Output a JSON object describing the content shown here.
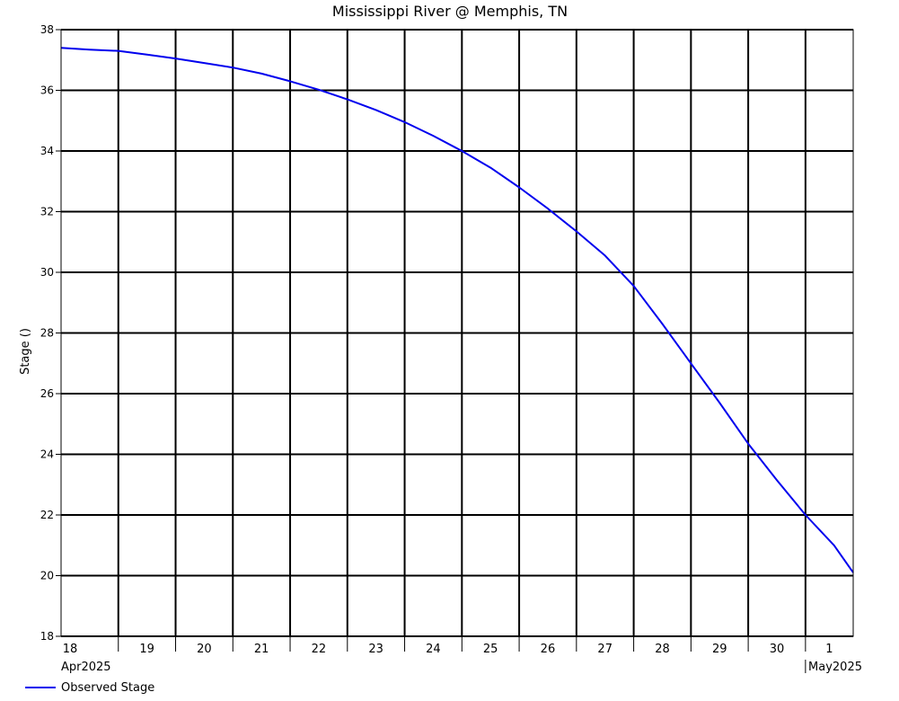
{
  "title": "Mississippi River @ Memphis, TN",
  "chart_data": {
    "type": "line",
    "title": "Mississippi River @ Memphis, TN",
    "xlabel": "",
    "ylabel": "Stage ()",
    "ylim": [
      18,
      38
    ],
    "yticks": [
      18,
      20,
      22,
      24,
      26,
      28,
      30,
      32,
      34,
      36,
      38
    ],
    "grid": true,
    "legend_position": "bottom-left",
    "day_ticks": [
      {
        "date": "2025-04-18",
        "label": "18"
      },
      {
        "date": "2025-04-19",
        "label": "19"
      },
      {
        "date": "2025-04-20",
        "label": "20"
      },
      {
        "date": "2025-04-21",
        "label": "21"
      },
      {
        "date": "2025-04-22",
        "label": "22"
      },
      {
        "date": "2025-04-23",
        "label": "23"
      },
      {
        "date": "2025-04-24",
        "label": "24"
      },
      {
        "date": "2025-04-25",
        "label": "25"
      },
      {
        "date": "2025-04-26",
        "label": "26"
      },
      {
        "date": "2025-04-27",
        "label": "27"
      },
      {
        "date": "2025-04-28",
        "label": "28"
      },
      {
        "date": "2025-04-29",
        "label": "29"
      },
      {
        "date": "2025-04-30",
        "label": "30"
      },
      {
        "date": "2025-05-01",
        "label": "1"
      }
    ],
    "month_labels": [
      "Apr2025",
      "May2025"
    ],
    "xlim": [
      "2025-04-18 00:00",
      "2025-05-01 20:00"
    ],
    "series": [
      {
        "name": "Observed Stage",
        "color": "#0000ee",
        "x": [
          "2025-04-18 00:00",
          "2025-04-18 12:00",
          "2025-04-19 00:00",
          "2025-04-19 12:00",
          "2025-04-20 00:00",
          "2025-04-20 12:00",
          "2025-04-21 00:00",
          "2025-04-21 12:00",
          "2025-04-22 00:00",
          "2025-04-22 12:00",
          "2025-04-23 00:00",
          "2025-04-23 12:00",
          "2025-04-24 00:00",
          "2025-04-24 12:00",
          "2025-04-25 00:00",
          "2025-04-25 12:00",
          "2025-04-26 00:00",
          "2025-04-26 12:00",
          "2025-04-27 00:00",
          "2025-04-27 12:00",
          "2025-04-28 00:00",
          "2025-04-28 12:00",
          "2025-04-29 00:00",
          "2025-04-29 12:00",
          "2025-04-30 00:00",
          "2025-04-30 12:00",
          "2025-05-01 00:00",
          "2025-05-01 12:00",
          "2025-05-01 20:00"
        ],
        "y": [
          37.4,
          37.34,
          37.3,
          37.18,
          37.05,
          36.9,
          36.75,
          36.55,
          36.3,
          36.02,
          35.7,
          35.35,
          34.95,
          34.5,
          34.0,
          33.45,
          32.8,
          32.1,
          31.35,
          30.55,
          29.55,
          28.3,
          27.0,
          25.7,
          24.35,
          23.15,
          22.0,
          21.0,
          20.1
        ]
      }
    ]
  }
}
